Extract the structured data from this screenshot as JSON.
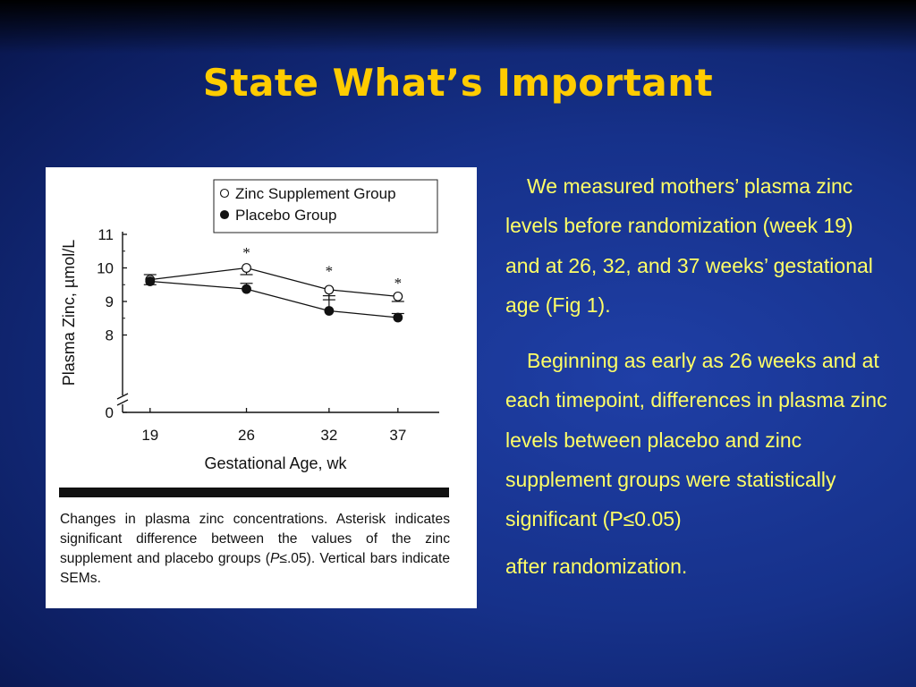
{
  "slide": {
    "title": "State What’s Important",
    "title_color": "#ffcc00",
    "text_color": "#ffff66",
    "background_color": "#16318a"
  },
  "body": {
    "paragraph_1": "We measured mothers’ plasma zinc levels before randomization (week 19) and at 26, 32, and 37 weeks’ gestational age (Fig 1).",
    "paragraph_2": "Beginning as early as 26 weeks and at each timepoint, differences in plasma zinc levels between placebo and zinc supplement groups were statistically significant (P≤0.05)",
    "paragraph_3": "after randomization."
  },
  "figure": {
    "caption_part1": "Changes in plasma zinc concentrations. Asterisk indicates significant difference between the values of the zinc supplement and placebo groups (",
    "caption_p": "P",
    "caption_part2": "≤.05). Vertical bars indicate SEMs."
  },
  "chart_data": {
    "type": "line",
    "x": [
      19,
      26,
      32,
      37
    ],
    "xlabel": "Gestational Age, wk",
    "ylabel": "Plasma Zinc, µmol/L",
    "yticks": [
      "0",
      "8",
      "9",
      "10",
      "11"
    ],
    "ylim": [
      7.0,
      11.0
    ],
    "axis_break": true,
    "legend_position": "top-right",
    "significance_marker": "*",
    "series": [
      {
        "name": "Zinc Supplement Group",
        "marker": "open-circle",
        "values": [
          9.65,
          10.0,
          9.35,
          9.15
        ],
        "sem": [
          0.15,
          0.2,
          0.3,
          0.15
        ],
        "significant": [
          false,
          true,
          true,
          true
        ]
      },
      {
        "name": "Placebo Group",
        "marker": "filled-circle",
        "values": [
          9.6,
          9.37,
          8.72,
          8.52
        ],
        "sem": [
          0.2,
          0.17,
          0.45,
          0.12
        ],
        "significant": [
          false,
          false,
          false,
          false
        ]
      }
    ]
  }
}
